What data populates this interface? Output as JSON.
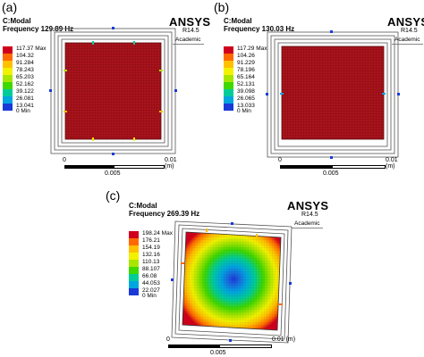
{
  "panels": [
    {
      "label": "(a)",
      "analysis": "C:Modal",
      "frequency": "Frequency 129.89 Hz",
      "brand": "ANSYS",
      "version": "R14.5",
      "edition": "Academic",
      "legend": [
        "117.37 Max",
        "104.32",
        "91.284",
        "78.243",
        "65.203",
        "52.162",
        "39.122",
        "26.081",
        "13.041",
        "0 Min"
      ],
      "scale": {
        "start": "0",
        "mid": "0.005",
        "end": "0.01 (m)"
      }
    },
    {
      "label": "(b)",
      "analysis": "C:Modal",
      "frequency": "Frequency 130.03 Hz",
      "brand": "ANSYS",
      "version": "R14.5",
      "edition": "Academic",
      "legend": [
        "117.29 Max",
        "104.26",
        "91.229",
        "78.196",
        "65.164",
        "52.131",
        "39.098",
        "26.065",
        "13.033",
        "0 Min"
      ],
      "scale": {
        "start": "0",
        "mid": "0.005",
        "end": "0.01 (m)"
      }
    },
    {
      "label": "(c)",
      "analysis": "C:Modal",
      "frequency": "Frequency 269.39 Hz",
      "brand": "ANSYS",
      "version": "R14.5",
      "edition": "Academic",
      "legend": [
        "198.24 Max",
        "176.21",
        "154.19",
        "132.16",
        "110.13",
        "88.107",
        "66.08",
        "44.053",
        "22.027",
        "0 Min"
      ],
      "scale": {
        "start": "0",
        "mid": "0.005",
        "end": "0.01 (m)"
      }
    }
  ],
  "colors": {
    "legend_scale": [
      "#d0001c",
      "#ff6a00",
      "#ffc000",
      "#f2f200",
      "#a8e600",
      "#3fd800",
      "#00cc99",
      "#00a6e0",
      "#1a3ad8"
    ],
    "plate_mode": "#a8141c",
    "grid": "#6a0008",
    "frame": "#555555"
  }
}
